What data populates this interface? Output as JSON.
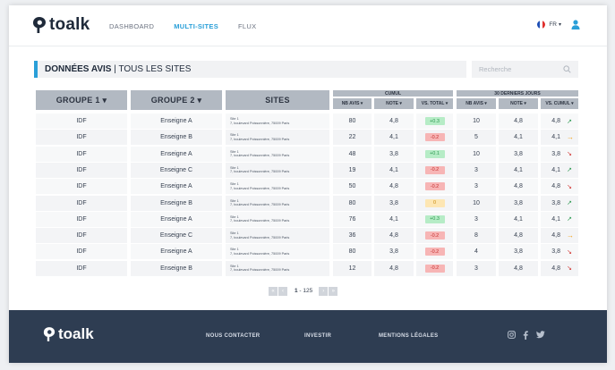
{
  "header": {
    "logo_text": "toalk",
    "nav": [
      {
        "label": "DASHBOARD"
      },
      {
        "label": "MULTI-SITES"
      },
      {
        "label": "FLUX"
      }
    ],
    "language": "FR"
  },
  "title": {
    "bold": "DONNÉES AVIS",
    "rest": " | TOUS LES SITES"
  },
  "search": {
    "placeholder": "Recherche"
  },
  "columns": {
    "groupe1": "GROUPE 1 ▾",
    "groupe2": "GROUPE 2 ▾",
    "sites": "SITES",
    "cumul": "CUMUL",
    "last30": "30 DERNIERS JOURS",
    "nb_avis": "NB AVIS ▾",
    "note": "NOTE ▾",
    "vs_total": "VS. TOTAL ▾",
    "nb_avis2": "NB AVIS ▾",
    "note2": "NOTE ▾",
    "vs_cumul": "VS. CUMUL ▾"
  },
  "rows": [
    {
      "g1": "IDF",
      "g2": "Enseigne A",
      "site1": "Site 1",
      "site2": "7, boulevard Poissonnière, 75009 Paris",
      "nb": "80",
      "note": "4,8",
      "vs": "+0.3",
      "vs_type": "pos",
      "nb30": "10",
      "note30": "4,8",
      "cumul": "4,8",
      "trend": "up"
    },
    {
      "g1": "IDF",
      "g2": "Enseigne B",
      "site1": "Site 1",
      "site2": "7, boulevard Poissonnière, 75009 Paris",
      "nb": "22",
      "note": "4,1",
      "vs": "-0.2",
      "vs_type": "neg",
      "nb30": "5",
      "note30": "4,1",
      "cumul": "4,1",
      "trend": "flat"
    },
    {
      "g1": "IDF",
      "g2": "Enseigne A",
      "site1": "Site 1",
      "site2": "7, boulevard Poissonnière, 75009 Paris",
      "nb": "48",
      "note": "3,8",
      "vs": "+0.1",
      "vs_type": "pos",
      "nb30": "10",
      "note30": "3,8",
      "cumul": "3,8",
      "trend": "down"
    },
    {
      "g1": "IDF",
      "g2": "Enseigne C",
      "site1": "Site 1",
      "site2": "7, boulevard Poissonnière, 75009 Paris",
      "nb": "19",
      "note": "4,1",
      "vs": "-0.2",
      "vs_type": "neg",
      "nb30": "3",
      "note30": "4,1",
      "cumul": "4,1",
      "trend": "up"
    },
    {
      "g1": "IDF",
      "g2": "Enseigne A",
      "site1": "Site 1",
      "site2": "7, boulevard Poissonnière, 75009 Paris",
      "nb": "50",
      "note": "4,8",
      "vs": "-0.2",
      "vs_type": "neg",
      "nb30": "3",
      "note30": "4,8",
      "cumul": "4,8",
      "trend": "down"
    },
    {
      "g1": "IDF",
      "g2": "Enseigne B",
      "site1": "Site 1",
      "site2": "7, boulevard Poissonnière, 75009 Paris",
      "nb": "80",
      "note": "3,8",
      "vs": "0",
      "vs_type": "zero",
      "nb30": "10",
      "note30": "3,8",
      "cumul": "3,8",
      "trend": "up"
    },
    {
      "g1": "IDF",
      "g2": "Enseigne A",
      "site1": "Site 1",
      "site2": "7, boulevard Poissonnière, 75009 Paris",
      "nb": "76",
      "note": "4,1",
      "vs": "+0.3",
      "vs_type": "pos",
      "nb30": "3",
      "note30": "4,1",
      "cumul": "4,1",
      "trend": "up"
    },
    {
      "g1": "IDF",
      "g2": "Enseigne C",
      "site1": "Site 1",
      "site2": "7, boulevard Poissonnière, 75009 Paris",
      "nb": "36",
      "note": "4,8",
      "vs": "-0.2",
      "vs_type": "neg",
      "nb30": "8",
      "note30": "4,8",
      "cumul": "4,8",
      "trend": "flat"
    },
    {
      "g1": "IDF",
      "g2": "Enseigne A",
      "site1": "Site 1",
      "site2": "7, boulevard Poissonnière, 75009 Paris",
      "nb": "80",
      "note": "3,8",
      "vs": "-0.2",
      "vs_type": "neg",
      "nb30": "4",
      "note30": "3,8",
      "cumul": "3,8",
      "trend": "down"
    },
    {
      "g1": "IDF",
      "g2": "Enseigne B",
      "site1": "Site 1",
      "site2": "7, boulevard Poissonnière, 75009 Paris",
      "nb": "12",
      "note": "4,8",
      "vs": "-0.2",
      "vs_type": "neg",
      "nb30": "3",
      "note30": "4,8",
      "cumul": "4,8",
      "trend": "down"
    }
  ],
  "pagination": {
    "current": "1",
    "range": " - 125"
  },
  "footer": {
    "logo_text": "toalk",
    "contact": "NOUS CONTACTER",
    "invest": "INVESTIR",
    "legal": "MENTIONS LÉGALES"
  },
  "icons": {
    "first_page": "double-chevron-left",
    "prev_page": "chevron-left",
    "next_page": "chevron-right",
    "last_page": "double-chevron-right",
    "trend_up": "arrow-up-right",
    "trend_down": "arrow-down-right",
    "trend_flat": "arrow-right"
  },
  "colors": {
    "accent": "#2a9fd8",
    "footer_bg": "#2e3d52",
    "header_cell": "#b2b9c2"
  }
}
